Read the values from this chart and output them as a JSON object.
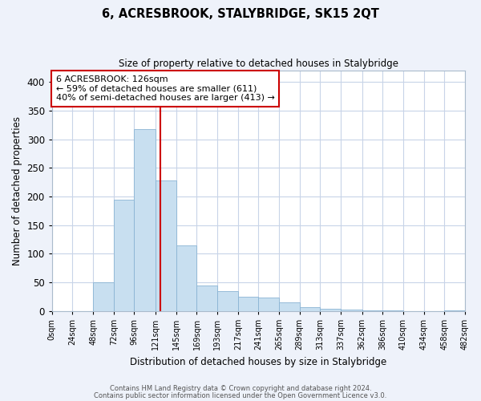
{
  "title": "6, ACRESBROOK, STALYBRIDGE, SK15 2QT",
  "subtitle": "Size of property relative to detached houses in Stalybridge",
  "xlabel": "Distribution of detached houses by size in Stalybridge",
  "ylabel": "Number of detached properties",
  "bin_edges": [
    0,
    24,
    48,
    72,
    96,
    121,
    145,
    169,
    193,
    217,
    241,
    265,
    289,
    313,
    337,
    362,
    386,
    410,
    434,
    458,
    482
  ],
  "bar_heights": [
    0,
    0,
    50,
    194,
    318,
    228,
    115,
    44,
    35,
    25,
    23,
    15,
    7,
    4,
    2,
    1,
    1,
    0,
    0,
    1
  ],
  "bar_color": "#c8dff0",
  "bar_edge_color": "#8ab4d4",
  "vline_x": 126,
  "vline_color": "#cc0000",
  "ylim": [
    0,
    420
  ],
  "yticks": [
    0,
    50,
    100,
    150,
    200,
    250,
    300,
    350,
    400
  ],
  "xtick_labels": [
    "0sqm",
    "24sqm",
    "48sqm",
    "72sqm",
    "96sqm",
    "121sqm",
    "145sqm",
    "169sqm",
    "193sqm",
    "217sqm",
    "241sqm",
    "265sqm",
    "289sqm",
    "313sqm",
    "337sqm",
    "362sqm",
    "386sqm",
    "410sqm",
    "434sqm",
    "458sqm",
    "482sqm"
  ],
  "xtick_positions": [
    0,
    24,
    48,
    72,
    96,
    121,
    145,
    169,
    193,
    217,
    241,
    265,
    289,
    313,
    337,
    362,
    386,
    410,
    434,
    458,
    482
  ],
  "annotation_title": "6 ACRESBROOK: 126sqm",
  "annotation_line1": "← 59% of detached houses are smaller (611)",
  "annotation_line2": "40% of semi-detached houses are larger (413) →",
  "footnote1": "Contains HM Land Registry data © Crown copyright and database right 2024.",
  "footnote2": "Contains public sector information licensed under the Open Government Licence v3.0.",
  "bg_color": "#eef2fa",
  "plot_bg_color": "#ffffff",
  "grid_color": "#c8d4e8"
}
